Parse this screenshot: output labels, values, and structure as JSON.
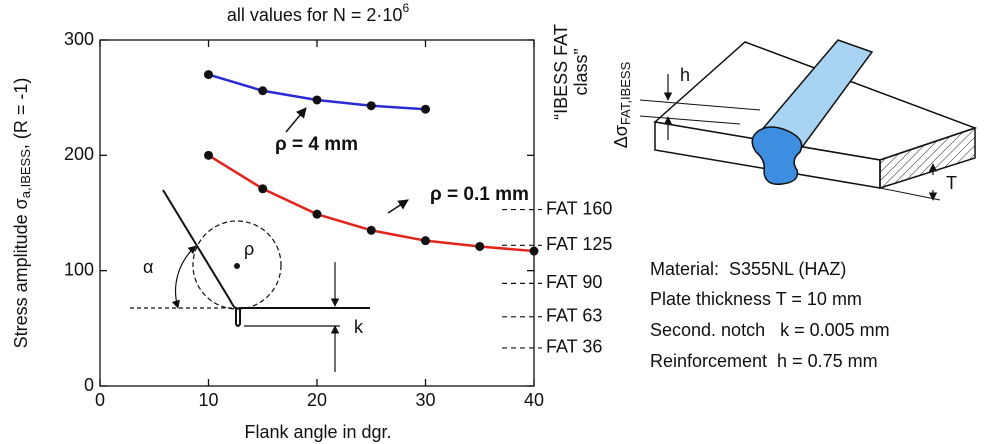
{
  "chart_data": {
    "type": "line",
    "title": "all values for N = 2·10",
    "title_exponent": "6",
    "x_label": "Flank angle in dgr.",
    "y_label": [
      "Stress amplitude σ",
      "a,IBESS",
      ", (R = -1)"
    ],
    "y2_label": [
      "“IBESS FAT",
      "class”"
    ],
    "x": [
      10,
      15,
      20,
      25,
      30,
      35,
      40
    ],
    "series": [
      {
        "name": "ρ = 4 mm",
        "color": "#2a2ad6",
        "values": [
          270,
          256,
          248,
          243,
          240,
          null,
          null
        ]
      },
      {
        "name": "ρ = 0.1 mm",
        "color": "#e3241b",
        "values": [
          200,
          171,
          149,
          135,
          126,
          121,
          117
        ]
      }
    ],
    "xlim": [
      0,
      40
    ],
    "ylim": [
      0,
      300
    ],
    "xticks": [
      0,
      10,
      20,
      30,
      40
    ],
    "yticks": [
      0,
      100,
      200,
      300
    ],
    "fat_classes": [
      {
        "label": "FAT 160",
        "value": 153
      },
      {
        "label": "FAT 125",
        "value": 122
      },
      {
        "label": "FAT 90",
        "value": 89
      },
      {
        "label": "FAT 63",
        "value": 60
      },
      {
        "label": "FAT 36",
        "value": 33
      }
    ]
  },
  "sketch": {
    "alpha": "α",
    "rho": "ρ",
    "k": "k"
  },
  "specimen": {
    "h": "h",
    "T": "T",
    "stress_range": [
      "Δσ",
      "FAT,IBESS"
    ]
  },
  "properties": [
    "Material:  S355NL (HAZ)",
    "Plate thickness T = 10 mm",
    "Second. notch   k = 0.005 mm",
    "Reinforcement  h = 0.75 mm"
  ]
}
